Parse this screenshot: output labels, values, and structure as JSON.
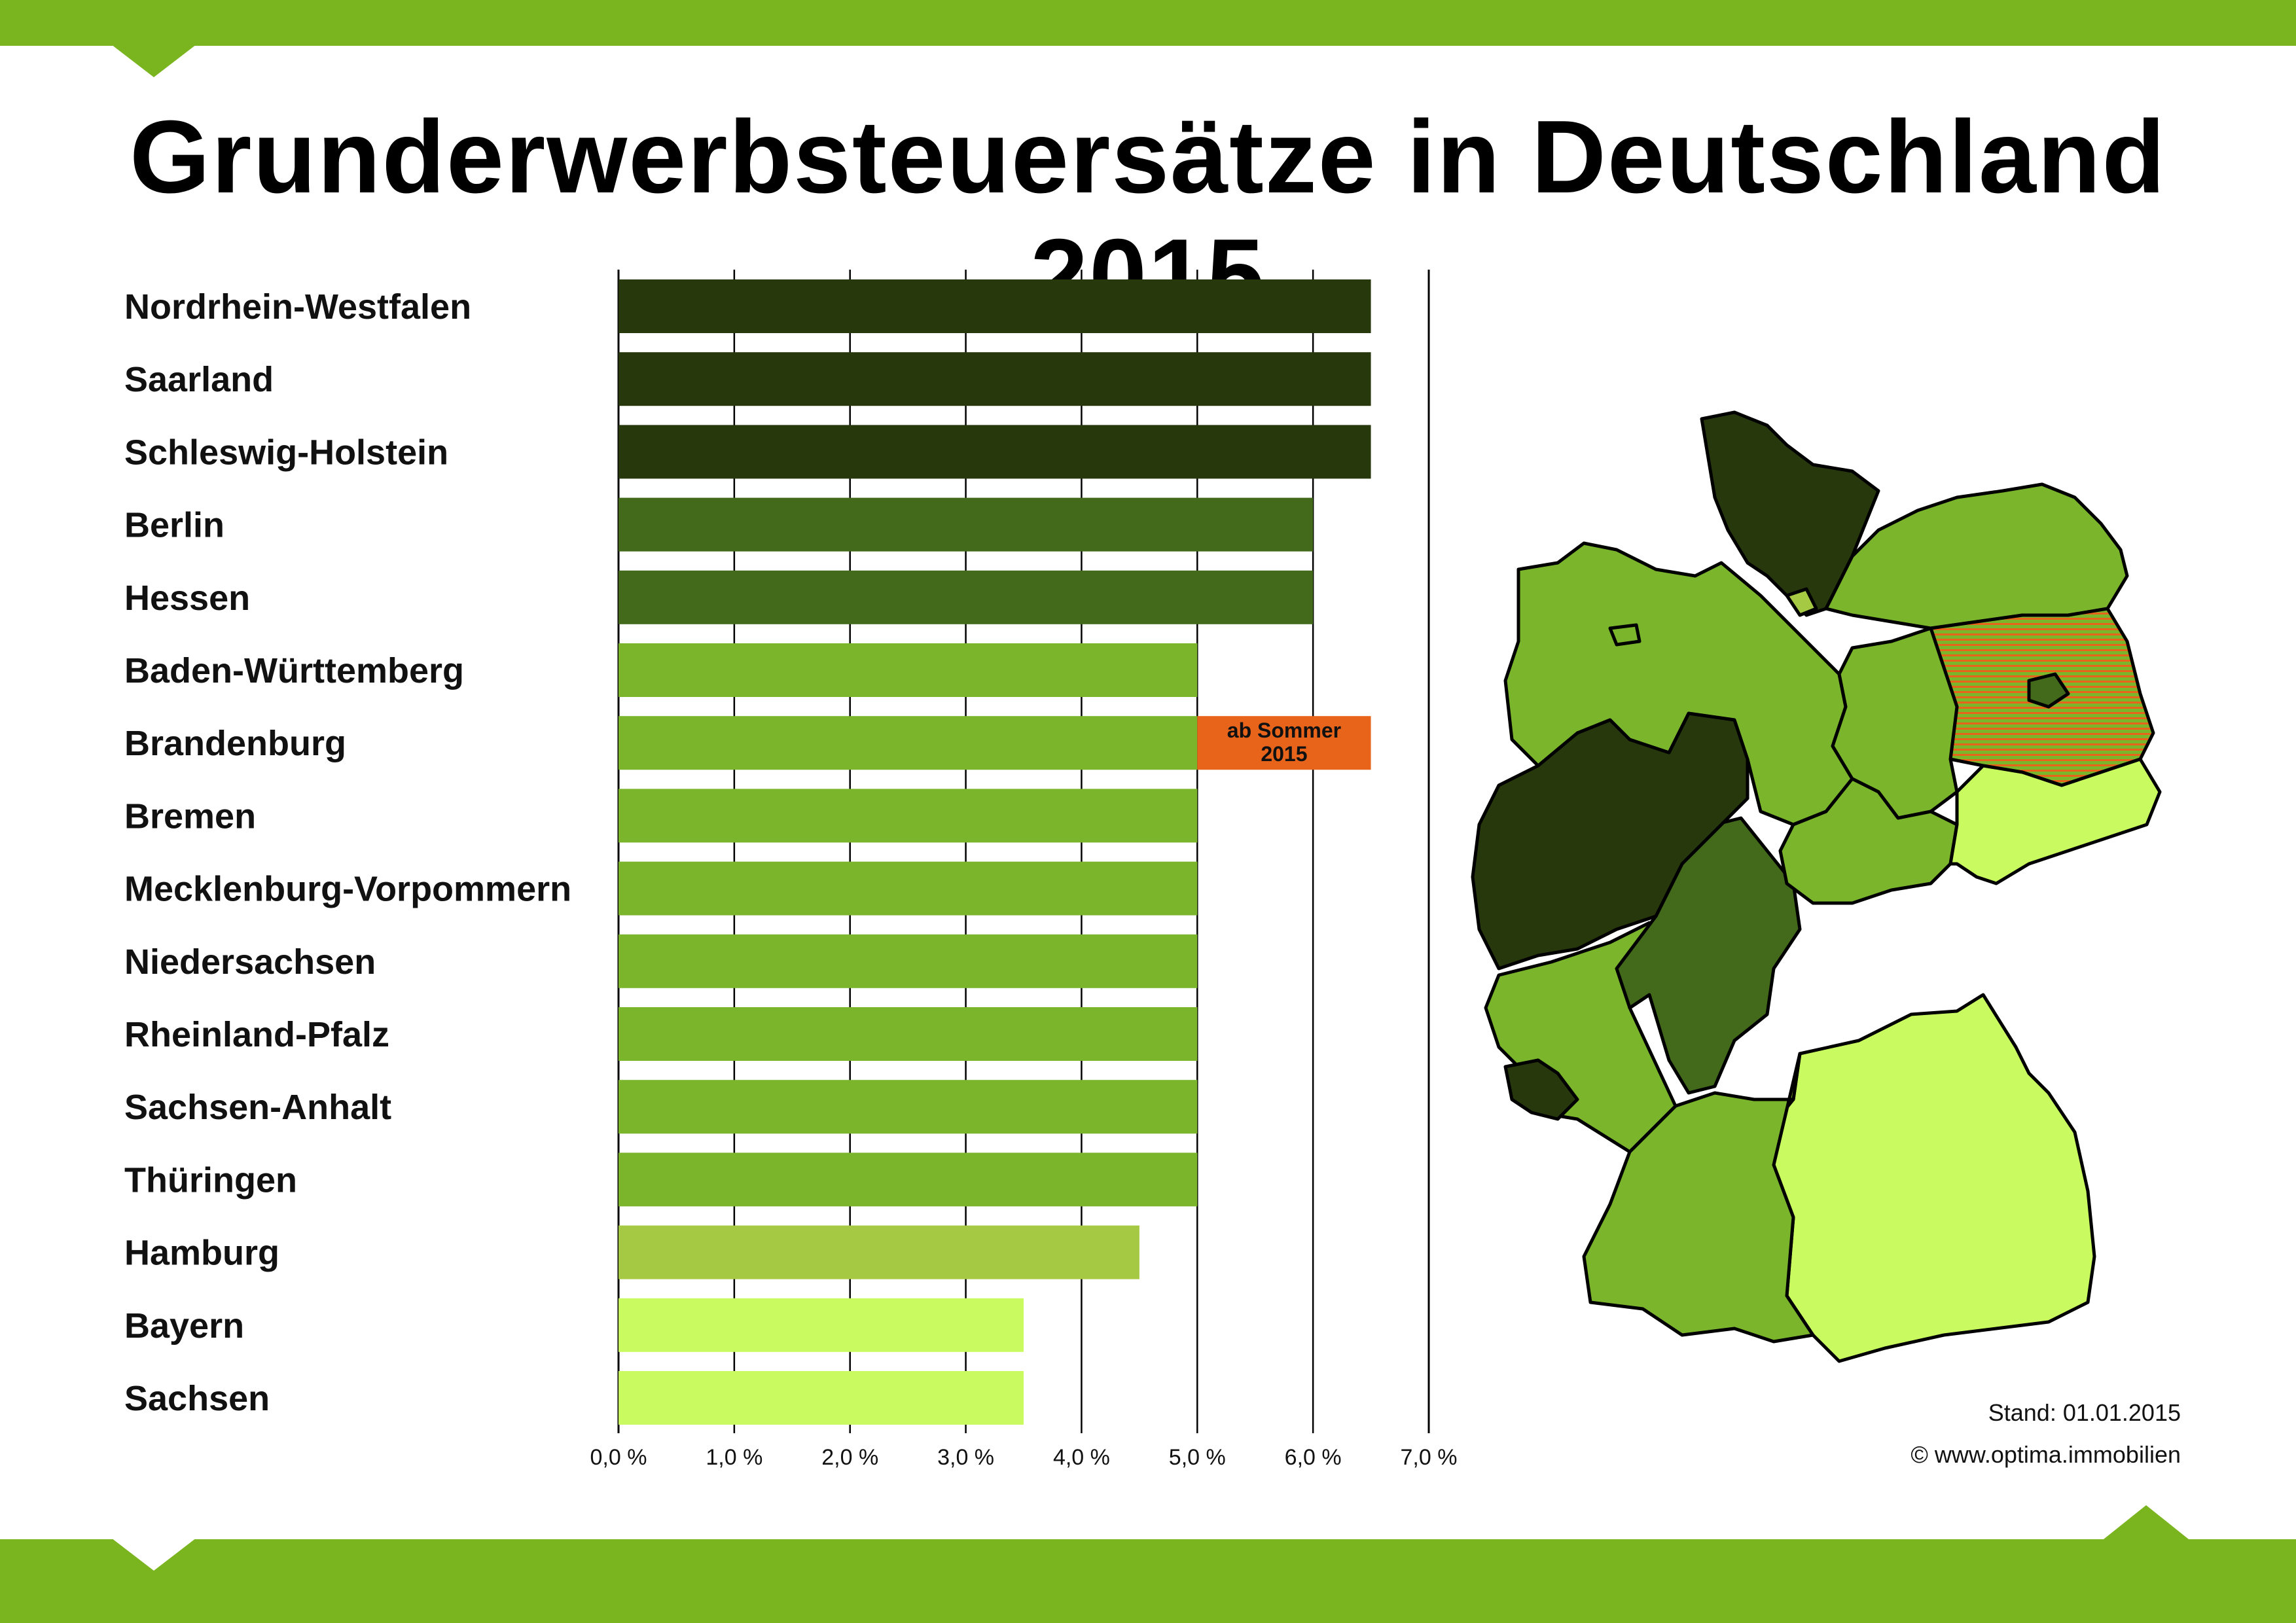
{
  "title": "Grunderwerbsteuersätze in Deutschland 2015",
  "colors": {
    "band": "#7ab51f",
    "rate_6_5": "#27390c",
    "rate_6_0": "#43691a",
    "rate_5_0": "#7ab52b",
    "rate_4_5": "#a6c943",
    "rate_3_5": "#c9fb61",
    "annotation": "#e8641b"
  },
  "chart_data": {
    "type": "bar",
    "orientation": "horizontal",
    "categories": [
      "Nordrhein-Westfalen",
      "Saarland",
      "Schleswig-Holstein",
      "Berlin",
      "Hessen",
      "Baden-Württemberg",
      "Brandenburg",
      "Bremen",
      "Mecklenburg-Vorpommern",
      "Niedersachsen",
      "Rheinland-Pfalz",
      "Sachsen-Anhalt",
      "Thüringen",
      "Hamburg",
      "Bayern",
      "Sachsen"
    ],
    "values": [
      6.5,
      6.5,
      6.5,
      6.0,
      6.0,
      5.0,
      5.0,
      5.0,
      5.0,
      5.0,
      5.0,
      5.0,
      5.0,
      4.5,
      3.5,
      3.5
    ],
    "xlim": [
      0,
      7
    ],
    "xticks": [
      0,
      1,
      2,
      3,
      4,
      5,
      6,
      7
    ],
    "xtick_labels": [
      "0,0 %",
      "1,0 %",
      "2,0 %",
      "3,0 %",
      "4,0 %",
      "5,0 %",
      "6,0 %",
      "7,0 %"
    ],
    "grid": "vertical",
    "annotation": {
      "category": "Brandenburg",
      "from": 5.0,
      "to": 6.5,
      "lines": [
        "ab Sommer",
        "2015"
      ]
    }
  },
  "map": {
    "regions": [
      {
        "name": "Schleswig-Holstein",
        "rate": 6.5
      },
      {
        "name": "Hamburg",
        "rate": 4.5
      },
      {
        "name": "Mecklenburg-Vorpommern",
        "rate": 5.0
      },
      {
        "name": "Niedersachsen",
        "rate": 5.0
      },
      {
        "name": "Bremen",
        "rate": 5.0
      },
      {
        "name": "Brandenburg",
        "rate": 5.0
      },
      {
        "name": "Berlin",
        "rate": 6.0
      },
      {
        "name": "Sachsen-Anhalt",
        "rate": 5.0
      },
      {
        "name": "Nordrhein-Westfalen",
        "rate": 6.5
      },
      {
        "name": "Hessen",
        "rate": 6.0
      },
      {
        "name": "Thüringen",
        "rate": 5.0
      },
      {
        "name": "Sachsen",
        "rate": 3.5
      },
      {
        "name": "Rheinland-Pfalz",
        "rate": 5.0
      },
      {
        "name": "Saarland",
        "rate": 6.5
      },
      {
        "name": "Baden-Württemberg",
        "rate": 5.0
      },
      {
        "name": "Bayern",
        "rate": 3.5
      }
    ]
  },
  "footer": {
    "stand": "Stand: 01.01.2015",
    "copyright": "© www.optima.immobilien"
  }
}
